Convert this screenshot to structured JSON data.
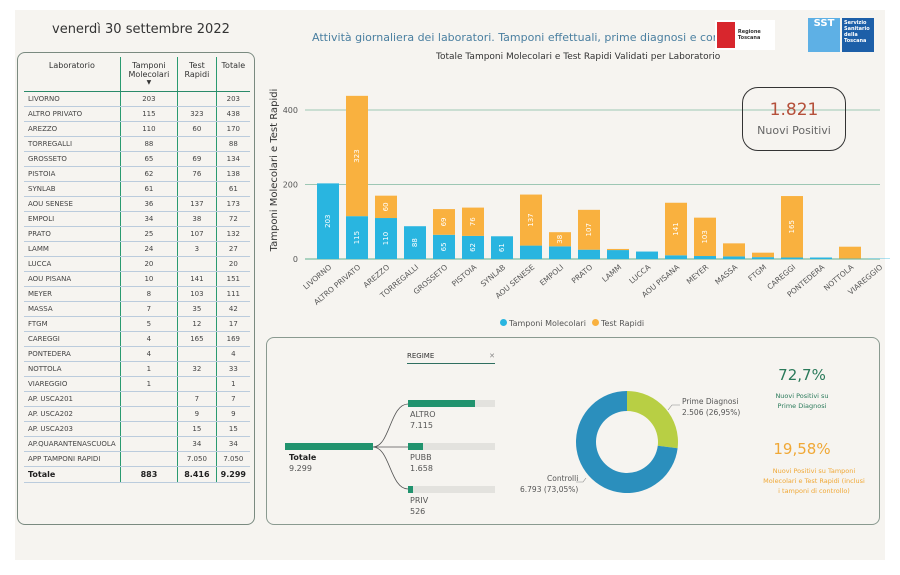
{
  "header": {
    "date": "venerdì 30 settembre 2022",
    "title": "Attività giornaliera dei laboratori. Tamponi effettuali, prime diagnosi e controlli",
    "logo_regione": "Regione Toscana",
    "logo_sst": "SST",
    "logo_sst_text": "Servizio Sanitario della Toscana"
  },
  "table": {
    "columns": [
      "Laboratorio",
      "Tamponi Molecolari",
      "Test Rapidi",
      "Totale"
    ],
    "rows": [
      [
        "LIVORNO",
        "203",
        "",
        "203"
      ],
      [
        "ALTRO PRIVATO",
        "115",
        "323",
        "438"
      ],
      [
        "AREZZO",
        "110",
        "60",
        "170"
      ],
      [
        "TORREGALLI",
        "88",
        "",
        "88"
      ],
      [
        "GROSSETO",
        "65",
        "69",
        "134"
      ],
      [
        "PISTOIA",
        "62",
        "76",
        "138"
      ],
      [
        "SYNLAB",
        "61",
        "",
        "61"
      ],
      [
        "AOU SENESE",
        "36",
        "137",
        "173"
      ],
      [
        "EMPOLI",
        "34",
        "38",
        "72"
      ],
      [
        "PRATO",
        "25",
        "107",
        "132"
      ],
      [
        "LAMM",
        "24",
        "3",
        "27"
      ],
      [
        "LUCCA",
        "20",
        "",
        "20"
      ],
      [
        "AOU PISANA",
        "10",
        "141",
        "151"
      ],
      [
        "MEYER",
        "8",
        "103",
        "111"
      ],
      [
        "MASSA",
        "7",
        "35",
        "42"
      ],
      [
        "FTGM",
        "5",
        "12",
        "17"
      ],
      [
        "CAREGGI",
        "4",
        "165",
        "169"
      ],
      [
        "PONTEDERA",
        "4",
        "",
        "4"
      ],
      [
        "NOTTOLA",
        "1",
        "32",
        "33"
      ],
      [
        "VIAREGGIO",
        "1",
        "",
        "1"
      ],
      [
        "AP. USCA201",
        "",
        "7",
        "7"
      ],
      [
        "AP. USCA202",
        "",
        "9",
        "9"
      ],
      [
        "AP. USCA203",
        "",
        "15",
        "15"
      ],
      [
        "AP.QUARANTENASCUOLA",
        "",
        "34",
        "34"
      ],
      [
        "APP TAMPONI RAPIDI",
        "",
        "7.050",
        "7.050"
      ]
    ],
    "total": [
      "Totale",
      "883",
      "8.416",
      "9.299"
    ]
  },
  "chart_data": {
    "type": "bar",
    "stacked": true,
    "title": "Totale Tamponi Molecolari e Test Rapidi Validati per Laboratorio",
    "ylabel": "Tamponi Molecolari e Test Rapidi",
    "ylim": [
      0,
      450
    ],
    "yticks": [
      0,
      200,
      400
    ],
    "grid": true,
    "legend": "bottom",
    "categories": [
      "LIVORNO",
      "ALTRO PRIVATO",
      "AREZZO",
      "TORREGALLI",
      "GROSSETO",
      "PISTOIA",
      "SYNLAB",
      "AOU SENESE",
      "EMPOLI",
      "PRATO",
      "LAMM",
      "LUCCA",
      "AOU PISANA",
      "MEYER",
      "MASSA",
      "FTGM",
      "CAREGGI",
      "PONTEDERA",
      "NOTTOLA",
      "VIAREGGIO"
    ],
    "series": [
      {
        "name": "Tamponi Molecolari",
        "color": "#29b5e0",
        "values": [
          203,
          115,
          110,
          88,
          65,
          62,
          61,
          36,
          34,
          25,
          24,
          20,
          10,
          8,
          7,
          5,
          4,
          4,
          1,
          1
        ]
      },
      {
        "name": "Test Rapidi",
        "color": "#f9b13f",
        "values": [
          0,
          323,
          60,
          0,
          69,
          76,
          0,
          137,
          38,
          107,
          3,
          0,
          141,
          103,
          35,
          12,
          165,
          0,
          32,
          0
        ]
      }
    ]
  },
  "kpi": {
    "value": "1.821",
    "label": "Nuovi Positivi"
  },
  "tree": {
    "filter": "REGIME",
    "root": {
      "label": "Totale",
      "value": "9.299"
    },
    "children": [
      {
        "label": "ALTRO",
        "value": "7.115",
        "fraction": 0.765
      },
      {
        "label": "PUBB",
        "value": "1.658",
        "fraction": 0.178
      },
      {
        "label": "PRIV",
        "value": "526",
        "fraction": 0.057
      }
    ]
  },
  "donut": {
    "slices": [
      {
        "label": "Prime Diagnosi",
        "text": "2.506 (26,95%)",
        "value": 2506,
        "color": "#b8cf44"
      },
      {
        "label": "Controlli",
        "text": "6.793 (73,05%)",
        "value": 6793,
        "color": "#2b8fbd"
      }
    ]
  },
  "stats": [
    {
      "value": "72,7%",
      "label": "Nuovi Positivi su Prime Diagnosi",
      "color": "#2a7a5a"
    },
    {
      "value": "19,58%",
      "label": "Nuovi Positivi su Tamponi Molecolari e Test Rapidi (inclusi i tamponi di controllo)",
      "color": "#f0a836"
    }
  ]
}
